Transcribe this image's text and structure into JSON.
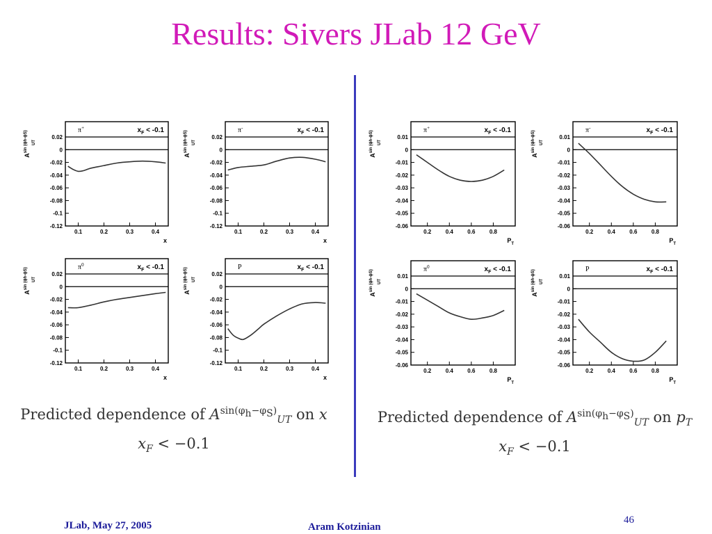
{
  "slide": {
    "title": "Results: Sivers JLab 12 GeV",
    "page_number": "46",
    "footer_left": "JLab, May 27,  2005",
    "footer_center": "Aram Kotzinian"
  },
  "captions": {
    "left": {
      "prefix": "Predicted dependence of ",
      "asym": "A",
      "asym_sup": "sin(φ",
      "asym_sup_sub1": "h",
      "asym_sup_mid": "−φ",
      "asym_sup_sub2": "S",
      "asym_sup_end": ")",
      "asym_sub": "UT",
      "on": " on ",
      "variable": "x",
      "cut_var": "x",
      "cut_sub": "F",
      "cut_rest": " < −0.1"
    },
    "right": {
      "prefix": "Predicted dependence of ",
      "asym": "A",
      "asym_sup": "sin(φ",
      "asym_sup_sub1": "h",
      "asym_sup_mid": "−φ",
      "asym_sup_sub2": "S",
      "asym_sup_end": ")",
      "asym_sub": "UT",
      "on": " on ",
      "variable": "p",
      "variable_sub": "T",
      "cut_var": "x",
      "cut_sub": "F",
      "cut_rest": " < −0.1"
    }
  },
  "chart_data": [
    {
      "type": "line",
      "hadron": "π",
      "hadron_sup": "+",
      "cut_label": "< -0.1",
      "xlabel": "x",
      "ylabel": "A",
      "ylabel_sup": "sin (ϕh-ϕS)",
      "ylabel_sub": "UT",
      "xlim": [
        0.05,
        0.45
      ],
      "ylim": [
        -0.12,
        0.02
      ],
      "xticks": [
        0.1,
        0.2,
        0.3,
        0.4
      ],
      "xtick_labels": [
        "0.1",
        "0.2",
        "0.3",
        "0.4"
      ],
      "yticks": [
        0.02,
        0,
        -0.02,
        -0.04,
        -0.06,
        -0.08,
        -0.1,
        -0.12
      ],
      "ytick_labels": [
        "0.02",
        "0",
        "-0.02",
        "-0.04",
        "-0.06",
        "-0.08",
        "-0.1",
        "-0.12"
      ],
      "x": [
        0.06,
        0.08,
        0.1,
        0.12,
        0.15,
        0.2,
        0.25,
        0.3,
        0.35,
        0.4,
        0.44
      ],
      "y": [
        -0.026,
        -0.031,
        -0.034,
        -0.033,
        -0.029,
        -0.025,
        -0.021,
        -0.019,
        -0.018,
        -0.019,
        -0.021
      ]
    },
    {
      "type": "line",
      "hadron": "π",
      "hadron_sup": "-",
      "cut_label": "< -0.1",
      "xlabel": "x",
      "ylabel": "A",
      "ylabel_sup": "sin (ϕh-ϕS)",
      "ylabel_sub": "UT",
      "xlim": [
        0.05,
        0.45
      ],
      "ylim": [
        -0.12,
        0.02
      ],
      "xticks": [
        0.1,
        0.2,
        0.3,
        0.4
      ],
      "xtick_labels": [
        "0.1",
        "0.2",
        "0.3",
        "0.4"
      ],
      "yticks": [
        0.02,
        0,
        -0.02,
        -0.04,
        -0.06,
        -0.08,
        -0.1,
        -0.12
      ],
      "ytick_labels": [
        "0.02",
        "0",
        "-0.02",
        "-0.04",
        "-0.06",
        "-0.08",
        "-0.1",
        "-0.12"
      ],
      "x": [
        0.06,
        0.1,
        0.15,
        0.2,
        0.25,
        0.3,
        0.35,
        0.4,
        0.44
      ],
      "y": [
        -0.032,
        -0.028,
        -0.026,
        -0.024,
        -0.018,
        -0.013,
        -0.012,
        -0.015,
        -0.019
      ]
    },
    {
      "type": "line",
      "hadron": "π",
      "hadron_sup": "0",
      "cut_label": "< -0.1",
      "xlabel": "x",
      "ylabel": "A",
      "ylabel_sup": "sin (ϕh-ϕS)",
      "ylabel_sub": "UT",
      "xlim": [
        0.05,
        0.45
      ],
      "ylim": [
        -0.12,
        0.02
      ],
      "xticks": [
        0.1,
        0.2,
        0.3,
        0.4
      ],
      "xtick_labels": [
        "0.1",
        "0.2",
        "0.3",
        "0.4"
      ],
      "yticks": [
        0.02,
        0,
        -0.02,
        -0.04,
        -0.06,
        -0.08,
        -0.1,
        -0.12
      ],
      "ytick_labels": [
        "0.02",
        "0",
        "-0.02",
        "-0.04",
        "-0.06",
        "-0.08",
        "-0.1",
        "-0.12"
      ],
      "x": [
        0.06,
        0.1,
        0.15,
        0.2,
        0.25,
        0.3,
        0.35,
        0.4,
        0.44
      ],
      "y": [
        -0.033,
        -0.033,
        -0.029,
        -0.024,
        -0.02,
        -0.017,
        -0.014,
        -0.011,
        -0.009
      ]
    },
    {
      "type": "line",
      "hadron": "P",
      "hadron_sup": "",
      "cut_label": "< -0.1",
      "xlabel": "x",
      "ylabel": "A",
      "ylabel_sup": "sin (ϕh-ϕS)",
      "ylabel_sub": "UT",
      "xlim": [
        0.05,
        0.45
      ],
      "ylim": [
        -0.12,
        0.02
      ],
      "xticks": [
        0.1,
        0.2,
        0.3,
        0.4
      ],
      "xtick_labels": [
        "0.1",
        "0.2",
        "0.3",
        "0.4"
      ],
      "yticks": [
        0.02,
        0,
        -0.02,
        -0.04,
        -0.06,
        -0.08,
        -0.1,
        -0.12
      ],
      "ytick_labels": [
        "0.02",
        "0",
        "-0.02",
        "-0.04",
        "-0.06",
        "-0.08",
        "-0.1",
        "-0.12"
      ],
      "x": [
        0.06,
        0.08,
        0.1,
        0.12,
        0.15,
        0.18,
        0.2,
        0.25,
        0.3,
        0.35,
        0.4,
        0.44
      ],
      "y": [
        -0.066,
        -0.076,
        -0.081,
        -0.083,
        -0.076,
        -0.066,
        -0.059,
        -0.046,
        -0.035,
        -0.027,
        -0.025,
        -0.026
      ]
    },
    {
      "type": "line",
      "hadron": "π",
      "hadron_sup": "+",
      "cut_label": "< -0.1",
      "xlabel": "P",
      "xlabel_sub": "T",
      "ylabel": "A",
      "ylabel_sup": "sin (ϕh-ϕS)",
      "ylabel_sub": "UT",
      "xlim": [
        0.05,
        1.0
      ],
      "ylim": [
        -0.06,
        0.01
      ],
      "xticks": [
        0.2,
        0.4,
        0.6,
        0.8
      ],
      "xtick_labels": [
        "0.2",
        "0.4",
        "0.6",
        "0.8"
      ],
      "yticks": [
        0.01,
        0,
        -0.01,
        -0.02,
        -0.03,
        -0.04,
        -0.05,
        -0.06
      ],
      "ytick_labels": [
        "0.01",
        "0",
        "-0.01",
        "-0.02",
        "-0.03",
        "-0.04",
        "-0.05",
        "-0.06"
      ],
      "x": [
        0.1,
        0.2,
        0.3,
        0.4,
        0.5,
        0.6,
        0.7,
        0.8,
        0.9
      ],
      "y": [
        -0.004,
        -0.01,
        -0.016,
        -0.021,
        -0.024,
        -0.025,
        -0.024,
        -0.021,
        -0.016
      ]
    },
    {
      "type": "line",
      "hadron": "π",
      "hadron_sup": "-",
      "cut_label": "< -0.1",
      "xlabel": "P",
      "xlabel_sub": "T",
      "ylabel": "A",
      "ylabel_sup": "sin (ϕh-ϕS)",
      "ylabel_sub": "UT",
      "xlim": [
        0.05,
        1.0
      ],
      "ylim": [
        -0.06,
        0.01
      ],
      "xticks": [
        0.2,
        0.4,
        0.6,
        0.8
      ],
      "xtick_labels": [
        "0.2",
        "0.4",
        "0.6",
        "0.8"
      ],
      "yticks": [
        0.01,
        0,
        -0.01,
        -0.02,
        -0.03,
        -0.04,
        -0.05,
        -0.06
      ],
      "ytick_labels": [
        "0.01",
        "0",
        "-0.01",
        "-0.02",
        "-0.03",
        "-0.04",
        "-0.05",
        "-0.06"
      ],
      "x": [
        0.1,
        0.2,
        0.3,
        0.4,
        0.5,
        0.6,
        0.7,
        0.8,
        0.9
      ],
      "y": [
        0.005,
        -0.003,
        -0.012,
        -0.021,
        -0.029,
        -0.035,
        -0.039,
        -0.041,
        -0.041
      ]
    },
    {
      "type": "line",
      "hadron": "π",
      "hadron_sup": "0",
      "cut_label": "< -0.1",
      "xlabel": "P",
      "xlabel_sub": "T",
      "ylabel": "A",
      "ylabel_sup": "sin (ϕh-ϕS)",
      "ylabel_sub": "UT",
      "xlim": [
        0.05,
        1.0
      ],
      "ylim": [
        -0.06,
        0.01
      ],
      "xticks": [
        0.2,
        0.4,
        0.6,
        0.8
      ],
      "xtick_labels": [
        "0.2",
        "0.4",
        "0.6",
        "0.8"
      ],
      "yticks": [
        0.01,
        0,
        -0.01,
        -0.02,
        -0.03,
        -0.04,
        -0.05,
        -0.06
      ],
      "ytick_labels": [
        "0.01",
        "0",
        "-0.01",
        "-0.02",
        "-0.03",
        "-0.04",
        "-0.05",
        "-0.06"
      ],
      "x": [
        0.1,
        0.2,
        0.3,
        0.4,
        0.5,
        0.6,
        0.7,
        0.8,
        0.9
      ],
      "y": [
        -0.004,
        -0.009,
        -0.014,
        -0.019,
        -0.022,
        -0.024,
        -0.023,
        -0.021,
        -0.017
      ]
    },
    {
      "type": "line",
      "hadron": "P",
      "hadron_sup": "",
      "cut_label": "< -0.1",
      "xlabel": "P",
      "xlabel_sub": "T",
      "ylabel": "A",
      "ylabel_sup": "sin (ϕh-ϕS)",
      "ylabel_sub": "UT",
      "xlim": [
        0.05,
        1.0
      ],
      "ylim": [
        -0.06,
        0.01
      ],
      "xticks": [
        0.2,
        0.4,
        0.6,
        0.8
      ],
      "xtick_labels": [
        "0.2",
        "0.4",
        "0.6",
        "0.8"
      ],
      "yticks": [
        0.01,
        0,
        -0.01,
        -0.02,
        -0.03,
        -0.04,
        -0.05,
        -0.06
      ],
      "ytick_labels": [
        "0.01",
        "0",
        "-0.01",
        "-0.02",
        "-0.03",
        "-0.04",
        "-0.05",
        "-0.06"
      ],
      "x": [
        0.1,
        0.2,
        0.3,
        0.4,
        0.5,
        0.6,
        0.7,
        0.8,
        0.9
      ],
      "y": [
        -0.024,
        -0.034,
        -0.042,
        -0.05,
        -0.055,
        -0.057,
        -0.056,
        -0.05,
        -0.041
      ]
    }
  ]
}
